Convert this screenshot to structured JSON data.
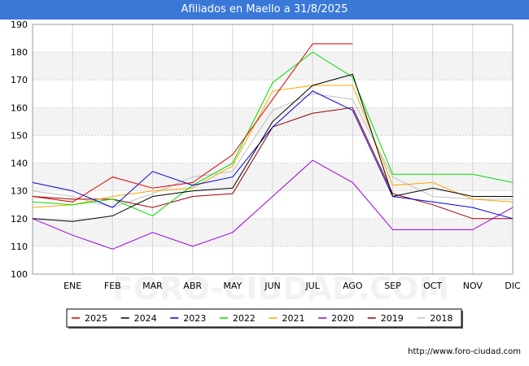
{
  "header": {
    "title": "Afiliados en Maello a 31/8/2025"
  },
  "footer": {
    "url": "http://www.foro-ciudad.com"
  },
  "watermark": "FORO-CIUDAD.COM",
  "chart_data": {
    "type": "line",
    "title": "Afiliados en Maello a 31/8/2025",
    "xlabel": "",
    "ylabel": "",
    "ylim": [
      100,
      190
    ],
    "yticks": [
      100,
      110,
      120,
      130,
      140,
      150,
      160,
      170,
      180,
      190
    ],
    "categories": [
      "",
      "ENE",
      "FEB",
      "MAR",
      "ABR",
      "MAY",
      "JUN",
      "JUL",
      "AGO",
      "SEP",
      "OCT",
      "NOV",
      "DIC"
    ],
    "grid": true,
    "legend_position": "bottom",
    "series": [
      {
        "name": "2025",
        "color": "#dd0000",
        "values": [
          128,
          126,
          135,
          131,
          133,
          143,
          163,
          183,
          183,
          null,
          null,
          null,
          null
        ]
      },
      {
        "name": "2024",
        "color": "#000000",
        "values": [
          120,
          119,
          121,
          128,
          130,
          131,
          155,
          168,
          172,
          128,
          131,
          128,
          128
        ]
      },
      {
        "name": "2023",
        "color": "#0000dd",
        "values": [
          133,
          130,
          124,
          137,
          132,
          135,
          153,
          166,
          159,
          128,
          126,
          124,
          120
        ]
      },
      {
        "name": "2022",
        "color": "#00dd00",
        "values": [
          126,
          125,
          127,
          121,
          132,
          140,
          169,
          180,
          171,
          136,
          136,
          136,
          133
        ]
      },
      {
        "name": "2021",
        "color": "#ffa500",
        "values": [
          124,
          125,
          128,
          130,
          131,
          139,
          166,
          168,
          168,
          132,
          133,
          127,
          126
        ]
      },
      {
        "name": "2020",
        "color": "#9900dd",
        "values": [
          120,
          114,
          109,
          115,
          110,
          115,
          128,
          141,
          133,
          116,
          116,
          116,
          124
        ]
      },
      {
        "name": "2019",
        "color": "#990000",
        "values": [
          128,
          127,
          127,
          124,
          128,
          129,
          153,
          158,
          160,
          129,
          125,
          120,
          120
        ]
      },
      {
        "name": "2018",
        "color": "#c0c0c0",
        "values": [
          130,
          128,
          124,
          129,
          135,
          137,
          159,
          165,
          163,
          135,
          128,
          127,
          127
        ]
      }
    ]
  }
}
